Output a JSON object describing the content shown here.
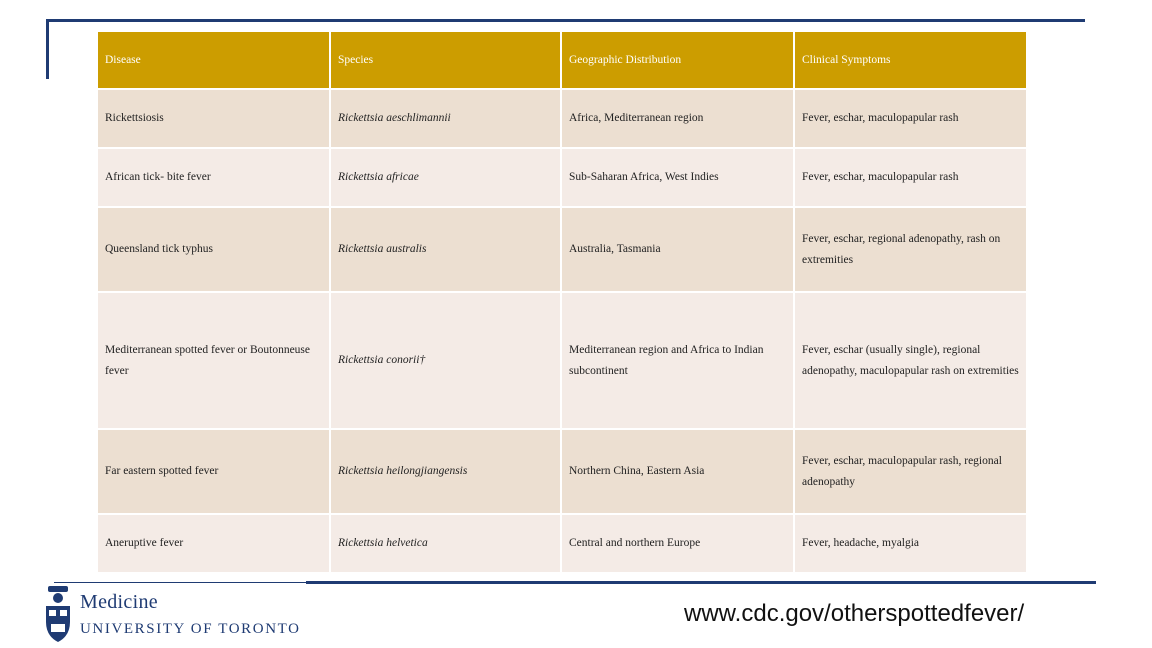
{
  "table": {
    "headers": [
      "Disease",
      "Species",
      "Geographic Distribution",
      "Clinical Symptoms"
    ],
    "rows": [
      {
        "disease": "Rickettsiosis",
        "species": "Rickettsia aeschlimannii",
        "distribution": "Africa, Mediterranean region",
        "symptoms": "Fever, eschar, maculopapular rash"
      },
      {
        "disease": "African tick- bite fever",
        "species": "Rickettsia africae",
        "distribution": "Sub-Saharan Africa, West Indies",
        "symptoms": "Fever, eschar, maculopapular rash"
      },
      {
        "disease": "Queensland tick typhus",
        "species": "Rickettsia australis",
        "distribution": "Australia, Tasmania",
        "symptoms": "Fever, eschar, regional adenopathy, rash on extremities"
      },
      {
        "disease": "Mediterranean spotted fever or Boutonneuse fever",
        "species": "Rickettsia conorii†",
        "distribution": "Mediterranean region and Africa to Indian subcontinent",
        "symptoms": "Fever, eschar (usually single), regional adenopathy, maculopapular rash on extremities"
      },
      {
        "disease": "Far eastern spotted fever",
        "species": "Rickettsia heilongjiangensis",
        "distribution": "Northern China, Eastern Asia",
        "symptoms": "Fever, eschar,  maculopapular rash, regional adenopathy"
      },
      {
        "disease": "Aneruptive fever",
        "species": "Rickettsia helvetica",
        "distribution": "Central and northern Europe",
        "symptoms": "Fever, headache, myalgia"
      }
    ]
  },
  "logo": {
    "line1": "Medicine",
    "line2": "UNIVERSITY OF TORONTO",
    "crest_icon": "university-crest-icon"
  },
  "footer": {
    "url": "www.cdc.gov/otherspottedfever/"
  },
  "colors": {
    "header_bg": "#cc9d00",
    "row_odd": "#ecdfd1",
    "row_even": "#f4ebe6",
    "rule": "#1f3b73"
  }
}
